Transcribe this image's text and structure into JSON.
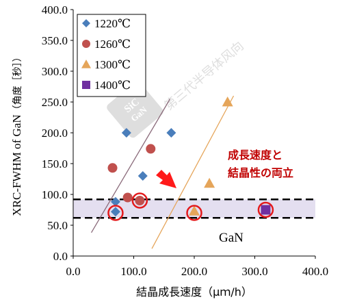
{
  "chart_data": {
    "type": "scatter",
    "xlabel": "結晶成長速度（μｍ/h）",
    "ylabel_prefix": "XRC-FWHM of GaN",
    "ylabel_suffix": "（角度［秒］）",
    "xlim": [
      0,
      400
    ],
    "ylim": [
      0,
      400
    ],
    "x_ticks": [
      0,
      100,
      200,
      300,
      400
    ],
    "y_ticks": [
      0,
      50,
      100,
      150,
      200,
      250,
      300,
      350,
      400
    ],
    "x_tick_labels": [
      "0.0",
      "100.0",
      "200.0",
      "300.0",
      "400.0"
    ],
    "y_tick_labels": [
      "0.0",
      "50.0",
      "100.0",
      "150.0",
      "200.0",
      "250.0",
      "300.0",
      "350.0",
      "400.0"
    ],
    "legend_position": "top-left",
    "series": [
      {
        "name": "1220℃",
        "marker": "diamond",
        "color": "#4a7ebb",
        "points": [
          {
            "x": 70,
            "y": 88
          },
          {
            "x": 70,
            "y": 72
          },
          {
            "x": 88,
            "y": 200
          },
          {
            "x": 115,
            "y": 130
          },
          {
            "x": 162,
            "y": 200
          }
        ]
      },
      {
        "name": "1260℃",
        "marker": "circle",
        "color": "#c0504d",
        "points": [
          {
            "x": 65,
            "y": 143
          },
          {
            "x": 90,
            "y": 95
          },
          {
            "x": 110,
            "y": 90
          },
          {
            "x": 128,
            "y": 174
          }
        ]
      },
      {
        "name": "1300℃",
        "marker": "triangle",
        "color": "#e5a55a",
        "points": [
          {
            "x": 200,
            "y": 73
          },
          {
            "x": 225,
            "y": 118
          },
          {
            "x": 255,
            "y": 250
          }
        ]
      },
      {
        "name": "1400℃",
        "marker": "square",
        "color": "#7030a0",
        "points": [
          {
            "x": 318,
            "y": 75
          }
        ]
      }
    ],
    "highlight_circles": [
      {
        "x": 70,
        "y": 70
      },
      {
        "x": 110,
        "y": 90
      },
      {
        "x": 200,
        "y": 70
      },
      {
        "x": 318,
        "y": 75
      }
    ],
    "band": {
      "y_low": 62,
      "y_high": 92,
      "fill": "#e4dff0"
    },
    "trend_lines": [
      {
        "x1": 30,
        "y1": 38,
        "x2": 160,
        "y2": 255,
        "color": "#8a6a7a"
      },
      {
        "x1": 130,
        "y1": 12,
        "x2": 265,
        "y2": 260,
        "color": "#e5a55a"
      }
    ],
    "annotation_lines": [
      "成長速度と",
      "結晶性の両立"
    ],
    "annotation_color": "#c00000",
    "band_label": "GaN",
    "watermark": "第三代半导体风向",
    "watermark_logo_text": "SiC GaN"
  }
}
